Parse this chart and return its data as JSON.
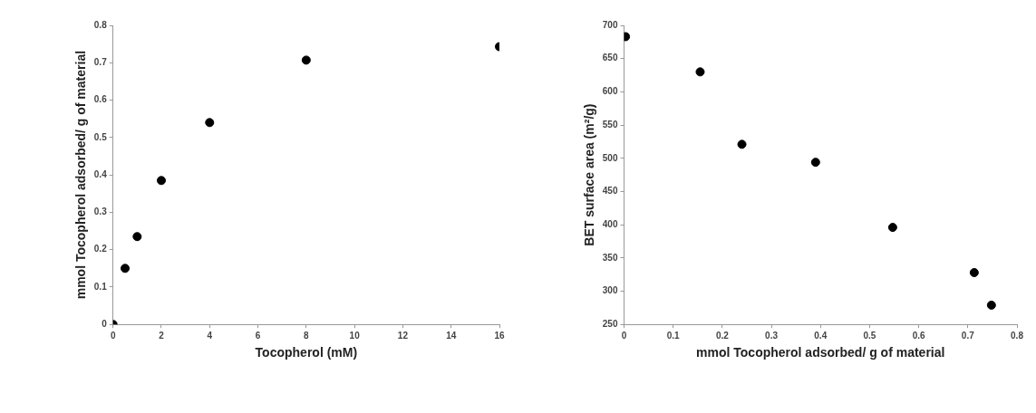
{
  "chart_data": [
    {
      "type": "scatter",
      "xlabel": "Tocopherol (mM)",
      "ylabel": "mmol Tocopherol adsorbed/ g of material",
      "marker": "circle",
      "grid": false,
      "legend": false,
      "series": [
        {
          "color": "#000000",
          "x": [
            0,
            0.5,
            1,
            2,
            4,
            8,
            16
          ],
          "values": [
            0,
            0.15,
            0.235,
            0.385,
            0.54,
            0.707,
            0.743
          ]
        }
      ],
      "xlim": [
        0,
        16
      ],
      "xticks": [
        0,
        2,
        4,
        6,
        8,
        10,
        12,
        14,
        16
      ],
      "ylim": [
        0,
        0.8
      ],
      "yticks": [
        0,
        0.1,
        0.2,
        0.3,
        0.4,
        0.5,
        0.6,
        0.7,
        0.8
      ]
    },
    {
      "type": "scatter",
      "xlabel": "mmol Tocopherol adsorbed/ g of material",
      "ylabel": "BET surface area (m²/g)",
      "marker": "circle",
      "grid": false,
      "legend": false,
      "series": [
        {
          "color": "#000000",
          "x": [
            0.003,
            0.155,
            0.24,
            0.39,
            0.547,
            0.713,
            0.748
          ],
          "values": [
            683,
            630,
            521,
            494,
            396,
            328,
            279
          ]
        }
      ],
      "xlim": [
        0,
        0.8
      ],
      "xticks": [
        0,
        0.1,
        0.2,
        0.3,
        0.4,
        0.5,
        0.6,
        0.7,
        0.8
      ],
      "ylim": [
        250,
        700
      ],
      "yticks": [
        250,
        300,
        350,
        400,
        450,
        500,
        550,
        600,
        650,
        700
      ]
    }
  ]
}
